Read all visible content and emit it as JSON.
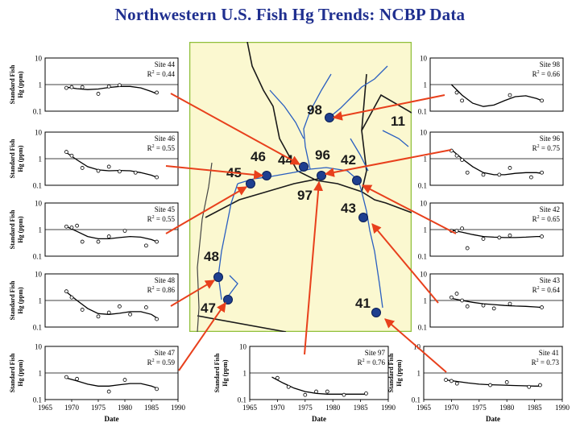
{
  "title": "Northwestern U.S. Fish Hg Trends: NCBP Data",
  "colors": {
    "title": "#1f2f8f",
    "arrow": "#e8401c",
    "map_bg": "#fbf8d0",
    "map_border": "#8fbf3a",
    "site_dot": "#1e3f8f",
    "river": "#2a5fc0"
  },
  "map": {
    "site_labels": [
      "98",
      "11",
      "46",
      "44",
      "96",
      "42",
      "45",
      "97",
      "43",
      "48",
      "47",
      "41"
    ]
  },
  "chart_data": [
    {
      "id": "site44",
      "type": "scatter",
      "site_label": "Site 44",
      "r2_label": "R",
      "r2_exp": "2",
      "r2_value": " = 0.44",
      "ylabel_top": "Standard Fish",
      "ylabel_bottom": "Hg (ppm)",
      "y_ticks": [
        "10",
        "1",
        "0.1"
      ],
      "x_ticks": [],
      "xlabel": "",
      "yscale": "log",
      "ylim": [
        0.1,
        10
      ],
      "xlim": [
        1965,
        1990
      ],
      "points": [
        [
          1969,
          0.75
        ],
        [
          1970,
          0.8
        ],
        [
          1972,
          0.8
        ],
        [
          1975,
          0.45
        ],
        [
          1977,
          0.85
        ],
        [
          1979,
          0.95
        ],
        [
          1986,
          0.5
        ]
      ],
      "trend": [
        [
          1969,
          0.8
        ],
        [
          1971,
          0.7
        ],
        [
          1973,
          0.65
        ],
        [
          1975,
          0.68
        ],
        [
          1977,
          0.78
        ],
        [
          1979,
          0.85
        ],
        [
          1981,
          0.85
        ],
        [
          1983,
          0.75
        ],
        [
          1985,
          0.55
        ],
        [
          1986,
          0.45
        ]
      ]
    },
    {
      "id": "site46",
      "type": "scatter",
      "site_label": "Site 46",
      "r2_label": "R",
      "r2_exp": "2",
      "r2_value": " = 0.55",
      "ylabel_top": "Standard Fish",
      "ylabel_bottom": "Hg (ppm)",
      "y_ticks": [
        "10",
        "1",
        "0.1"
      ],
      "x_ticks": [],
      "xlabel": "",
      "yscale": "log",
      "ylim": [
        0.1,
        10
      ],
      "xlim": [
        1965,
        1990
      ],
      "points": [
        [
          1969,
          1.8
        ],
        [
          1970,
          1.3
        ],
        [
          1972,
          0.45
        ],
        [
          1975,
          0.35
        ],
        [
          1977,
          0.5
        ],
        [
          1979,
          0.33
        ],
        [
          1982,
          0.3
        ],
        [
          1986,
          0.2
        ]
      ],
      "trend": [
        [
          1969,
          1.7
        ],
        [
          1971,
          0.9
        ],
        [
          1973,
          0.5
        ],
        [
          1975,
          0.38
        ],
        [
          1977,
          0.35
        ],
        [
          1979,
          0.36
        ],
        [
          1981,
          0.35
        ],
        [
          1983,
          0.3
        ],
        [
          1985,
          0.24
        ],
        [
          1986,
          0.2
        ]
      ]
    },
    {
      "id": "site45",
      "type": "scatter",
      "site_label": "Site 45",
      "r2_label": "R",
      "r2_exp": "2",
      "r2_value": " = 0.55",
      "ylabel_top": "Standard Fish",
      "ylabel_bottom": "Hg (ppm)",
      "y_ticks": [
        "10",
        "1",
        "0.1"
      ],
      "x_ticks": [],
      "xlabel": "",
      "yscale": "log",
      "ylim": [
        0.1,
        10
      ],
      "xlim": [
        1965,
        1990
      ],
      "points": [
        [
          1969,
          1.3
        ],
        [
          1970,
          1.2
        ],
        [
          1971,
          1.4
        ],
        [
          1972,
          0.35
        ],
        [
          1975,
          0.35
        ],
        [
          1977,
          0.55
        ],
        [
          1980,
          0.9
        ],
        [
          1984,
          0.25
        ],
        [
          1986,
          0.35
        ]
      ],
      "trend": [
        [
          1969,
          1.3
        ],
        [
          1971,
          0.85
        ],
        [
          1973,
          0.55
        ],
        [
          1975,
          0.45
        ],
        [
          1977,
          0.45
        ],
        [
          1979,
          0.5
        ],
        [
          1981,
          0.55
        ],
        [
          1983,
          0.52
        ],
        [
          1985,
          0.42
        ],
        [
          1986,
          0.35
        ]
      ]
    },
    {
      "id": "site48",
      "type": "scatter",
      "site_label": "Site 48",
      "r2_label": "R",
      "r2_exp": "2",
      "r2_value": " = 0.86",
      "ylabel_top": "Standard Fish",
      "ylabel_bottom": "Hg (ppm)",
      "y_ticks": [
        "10",
        "1",
        "0.1"
      ],
      "x_ticks": [],
      "xlabel": "",
      "yscale": "log",
      "ylim": [
        0.1,
        10
      ],
      "xlim": [
        1965,
        1990
      ],
      "points": [
        [
          1969,
          2.2
        ],
        [
          1970,
          1.3
        ],
        [
          1972,
          0.45
        ],
        [
          1975,
          0.25
        ],
        [
          1977,
          0.35
        ],
        [
          1979,
          0.6
        ],
        [
          1981,
          0.3
        ],
        [
          1984,
          0.55
        ],
        [
          1986,
          0.2
        ]
      ],
      "trend": [
        [
          1969,
          2.1
        ],
        [
          1971,
          1.0
        ],
        [
          1973,
          0.5
        ],
        [
          1975,
          0.32
        ],
        [
          1977,
          0.3
        ],
        [
          1979,
          0.33
        ],
        [
          1981,
          0.38
        ],
        [
          1983,
          0.38
        ],
        [
          1985,
          0.3
        ],
        [
          1986,
          0.22
        ]
      ]
    },
    {
      "id": "site47",
      "type": "scatter",
      "site_label": "Site 47",
      "r2_label": "R",
      "r2_exp": "2",
      "r2_value": " = 0.59",
      "ylabel_top": "Standard Fish",
      "ylabel_bottom": "Hg (ppm)",
      "y_ticks": [
        "10",
        "1",
        "0.1"
      ],
      "x_ticks": [
        "1965",
        "1970",
        "1975",
        "1980",
        "1985",
        "1990"
      ],
      "xlabel": "Date",
      "yscale": "log",
      "ylim": [
        0.1,
        10
      ],
      "xlim": [
        1965,
        1990
      ],
      "points": [
        [
          1969,
          0.7
        ],
        [
          1971,
          0.6
        ],
        [
          1977,
          0.2
        ],
        [
          1980,
          0.55
        ],
        [
          1986,
          0.25
        ]
      ],
      "trend": [
        [
          1969,
          0.65
        ],
        [
          1971,
          0.5
        ],
        [
          1973,
          0.38
        ],
        [
          1975,
          0.32
        ],
        [
          1977,
          0.32
        ],
        [
          1979,
          0.36
        ],
        [
          1981,
          0.4
        ],
        [
          1983,
          0.4
        ],
        [
          1985,
          0.32
        ],
        [
          1986,
          0.27
        ]
      ]
    },
    {
      "id": "site97",
      "type": "scatter",
      "site_label": "Site 97",
      "r2_label": "R",
      "r2_exp": "2",
      "r2_value": " = 0.76",
      "ylabel_top": "Standard Fish",
      "ylabel_bottom": "Hg (ppm)",
      "y_ticks": [
        "10",
        "1",
        "0.1"
      ],
      "x_ticks": [
        "1965",
        "1970",
        "1975",
        "1980",
        "1985",
        "1990"
      ],
      "xlabel": "Date",
      "yscale": "log",
      "ylim": [
        0.1,
        10
      ],
      "xlim": [
        1965,
        1990
      ],
      "points": [
        [
          1970,
          0.65
        ],
        [
          1972,
          0.3
        ],
        [
          1975,
          0.15
        ],
        [
          1977,
          0.2
        ],
        [
          1979,
          0.2
        ],
        [
          1982,
          0.15
        ],
        [
          1986,
          0.17
        ]
      ],
      "trend": [
        [
          1969,
          0.7
        ],
        [
          1971,
          0.42
        ],
        [
          1973,
          0.27
        ],
        [
          1975,
          0.2
        ],
        [
          1977,
          0.17
        ],
        [
          1979,
          0.16
        ],
        [
          1981,
          0.16
        ],
        [
          1983,
          0.16
        ],
        [
          1985,
          0.16
        ],
        [
          1986,
          0.16
        ]
      ]
    },
    {
      "id": "site98",
      "type": "scatter",
      "site_label": "Site 98",
      "r2_label": "R",
      "r2_exp": "2",
      "r2_value": " = 0.66",
      "ylabel_top": "",
      "ylabel_bottom": "",
      "y_ticks": [
        "10",
        "1",
        "0.1"
      ],
      "x_ticks": [],
      "xlabel": "",
      "yscale": "log",
      "ylim": [
        0.1,
        10
      ],
      "xlim": [
        1965,
        1990
      ],
      "points": [
        [
          1970,
          0.5
        ],
        [
          1971,
          0.25
        ],
        [
          1980,
          0.4
        ],
        [
          1986,
          0.25
        ]
      ],
      "trend": [
        [
          1969,
          1.0
        ],
        [
          1971,
          0.4
        ],
        [
          1973,
          0.2
        ],
        [
          1975,
          0.15
        ],
        [
          1977,
          0.17
        ],
        [
          1979,
          0.25
        ],
        [
          1981,
          0.35
        ],
        [
          1983,
          0.38
        ],
        [
          1985,
          0.3
        ],
        [
          1986,
          0.25
        ]
      ]
    },
    {
      "id": "site96",
      "type": "scatter",
      "site_label": "Site 96",
      "r2_label": "R",
      "r2_exp": "2",
      "r2_value": " = 0.75",
      "ylabel_top": "",
      "ylabel_bottom": "",
      "y_ticks": [
        "10",
        "1",
        "0.1"
      ],
      "x_ticks": [],
      "xlabel": "",
      "yscale": "log",
      "ylim": [
        0.1,
        10
      ],
      "xlim": [
        1965,
        1990
      ],
      "points": [
        [
          1969,
          2.0
        ],
        [
          1970,
          1.3
        ],
        [
          1971,
          0.9
        ],
        [
          1972,
          0.3
        ],
        [
          1975,
          0.25
        ],
        [
          1978,
          0.25
        ],
        [
          1980,
          0.45
        ],
        [
          1984,
          0.2
        ],
        [
          1986,
          0.3
        ]
      ],
      "trend": [
        [
          1969,
          2.2
        ],
        [
          1971,
          1.0
        ],
        [
          1973,
          0.5
        ],
        [
          1975,
          0.3
        ],
        [
          1977,
          0.25
        ],
        [
          1979,
          0.25
        ],
        [
          1981,
          0.28
        ],
        [
          1983,
          0.3
        ],
        [
          1985,
          0.3
        ],
        [
          1986,
          0.28
        ]
      ]
    },
    {
      "id": "site42",
      "type": "scatter",
      "site_label": "Site 42",
      "r2_label": "R",
      "r2_exp": "2",
      "r2_value": " = 0.65",
      "ylabel_top": "",
      "ylabel_bottom": "",
      "y_ticks": [
        "10",
        "1",
        "0.1"
      ],
      "x_ticks": [],
      "xlabel": "",
      "yscale": "log",
      "ylim": [
        0.1,
        10
      ],
      "xlim": [
        1965,
        1990
      ],
      "points": [
        [
          1969,
          0.9
        ],
        [
          1970,
          0.9
        ],
        [
          1971,
          1.1
        ],
        [
          1972,
          0.2
        ],
        [
          1975,
          0.45
        ],
        [
          1978,
          0.5
        ],
        [
          1980,
          0.6
        ],
        [
          1986,
          0.55
        ]
      ],
      "trend": [
        [
          1969,
          0.95
        ],
        [
          1971,
          0.8
        ],
        [
          1973,
          0.65
        ],
        [
          1975,
          0.55
        ],
        [
          1977,
          0.52
        ],
        [
          1979,
          0.5
        ],
        [
          1981,
          0.5
        ],
        [
          1983,
          0.52
        ],
        [
          1985,
          0.55
        ],
        [
          1986,
          0.55
        ]
      ]
    },
    {
      "id": "site43",
      "type": "scatter",
      "site_label": "Site 43",
      "r2_label": "R",
      "r2_exp": "2",
      "r2_value": " = 0.64",
      "ylabel_top": "",
      "ylabel_bottom": "",
      "y_ticks": [
        "10",
        "1",
        "0.1"
      ],
      "x_ticks": [],
      "xlabel": "",
      "yscale": "log",
      "ylim": [
        0.1,
        10
      ],
      "xlim": [
        1965,
        1990
      ],
      "points": [
        [
          1969,
          1.3
        ],
        [
          1970,
          1.8
        ],
        [
          1971,
          1.0
        ],
        [
          1972,
          0.6
        ],
        [
          1975,
          0.65
        ],
        [
          1977,
          0.5
        ],
        [
          1980,
          0.75
        ],
        [
          1986,
          0.55
        ]
      ],
      "trend": [
        [
          1969,
          1.2
        ],
        [
          1971,
          1.0
        ],
        [
          1973,
          0.85
        ],
        [
          1975,
          0.75
        ],
        [
          1977,
          0.7
        ],
        [
          1979,
          0.65
        ],
        [
          1981,
          0.62
        ],
        [
          1983,
          0.6
        ],
        [
          1985,
          0.57
        ],
        [
          1986,
          0.55
        ]
      ]
    },
    {
      "id": "site41",
      "type": "scatter",
      "site_label": "Site 41",
      "r2_label": "R",
      "r2_exp": "2",
      "r2_value": " = 0.73",
      "ylabel_top": "Standard Fish",
      "ylabel_bottom": "Hg (ppm)",
      "y_ticks": [
        "10",
        "1",
        "0.1"
      ],
      "x_ticks": [
        "1965",
        "1970",
        "1975",
        "1980",
        "1985",
        "1990"
      ],
      "xlabel": "Date",
      "yscale": "log",
      "ylim": [
        0.1,
        10
      ],
      "xlim": [
        1965,
        1990
      ],
      "points": [
        [
          1969,
          0.55
        ],
        [
          1970,
          0.5
        ],
        [
          1971,
          0.4
        ],
        [
          1977,
          0.35
        ],
        [
          1980,
          0.45
        ],
        [
          1984,
          0.3
        ],
        [
          1986,
          0.35
        ]
      ],
      "trend": [
        [
          1969,
          0.55
        ],
        [
          1971,
          0.48
        ],
        [
          1973,
          0.42
        ],
        [
          1975,
          0.38
        ],
        [
          1977,
          0.36
        ],
        [
          1979,
          0.35
        ],
        [
          1981,
          0.34
        ],
        [
          1983,
          0.33
        ],
        [
          1985,
          0.32
        ],
        [
          1986,
          0.32
        ]
      ]
    }
  ]
}
